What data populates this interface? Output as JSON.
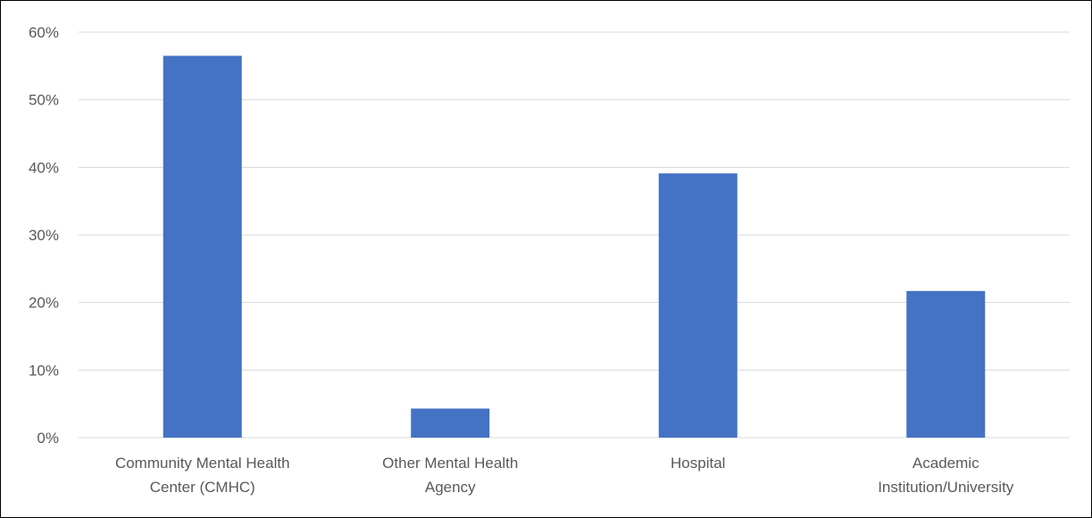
{
  "chart_data": {
    "type": "bar",
    "categories": [
      [
        "Community Mental Health",
        "Center (CMHC)"
      ],
      [
        "Other Mental Health",
        "Agency"
      ],
      [
        "Hospital"
      ],
      [
        "Academic",
        "Institution/University"
      ]
    ],
    "values": [
      0.565,
      0.043,
      0.391,
      0.217
    ],
    "ylim": [
      0,
      0.6
    ],
    "yticks": [
      0,
      0.1,
      0.2,
      0.3,
      0.4,
      0.5,
      0.6
    ],
    "ytick_labels": [
      "0%",
      "10%",
      "20%",
      "30%",
      "40%",
      "50%",
      "60%"
    ],
    "grid": true,
    "legend": "none",
    "title": "",
    "xlabel": "",
    "ylabel": "",
    "colors": {
      "bar": "#4472c4",
      "grid": "#d9d9d9",
      "text": "#595959",
      "border": "#000000"
    }
  }
}
